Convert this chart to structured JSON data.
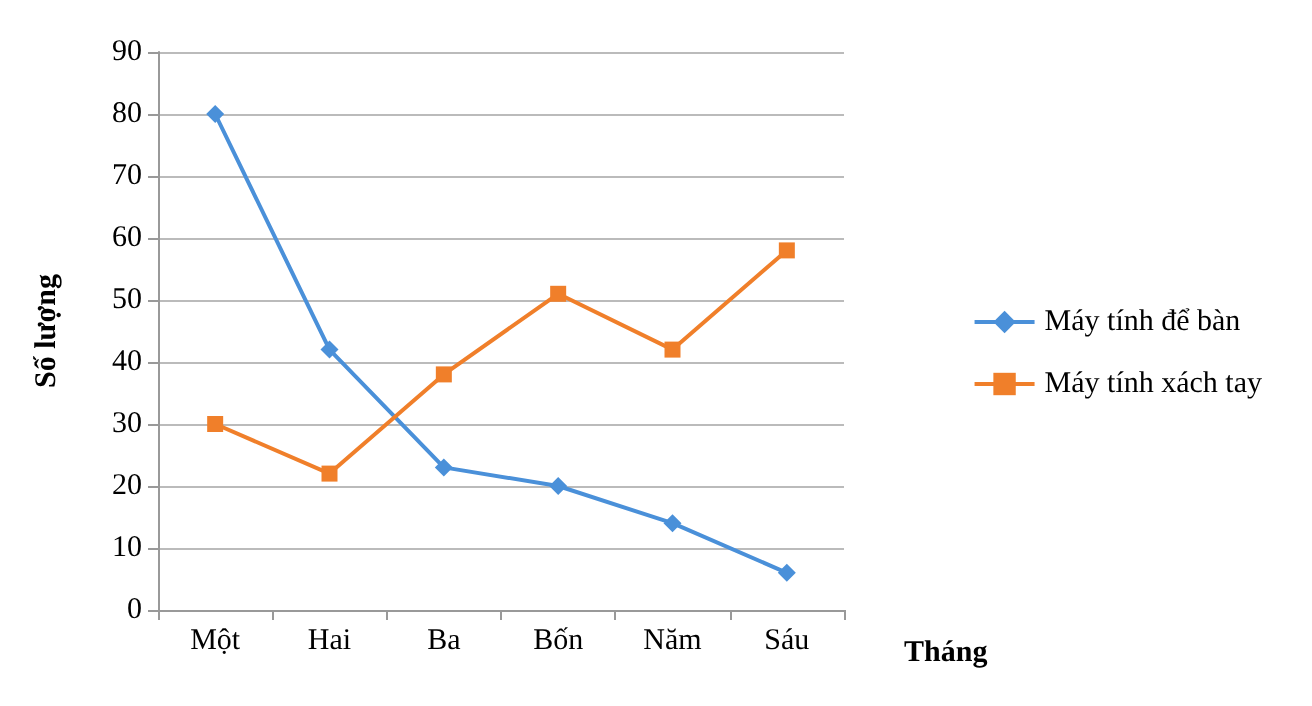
{
  "chart_data": {
    "type": "line",
    "xlabel": "Tháng",
    "ylabel": "Số lượng",
    "categories": [
      "Một",
      "Hai",
      "Ba",
      "Bốn",
      "Năm",
      "Sáu"
    ],
    "series": [
      {
        "name": "Máy tính để bàn",
        "color": "#4a90d9",
        "marker": "diamond",
        "values": [
          80,
          42,
          23,
          20,
          14,
          6
        ]
      },
      {
        "name": "Máy tính xách tay",
        "color": "#f07f2a",
        "marker": "square",
        "values": [
          30,
          22,
          38,
          51,
          42,
          58
        ]
      }
    ],
    "ylim": [
      0,
      90
    ],
    "yticks": [
      0,
      10,
      20,
      30,
      40,
      50,
      60,
      70,
      80,
      90
    ],
    "grid": "y",
    "legend": "right"
  }
}
